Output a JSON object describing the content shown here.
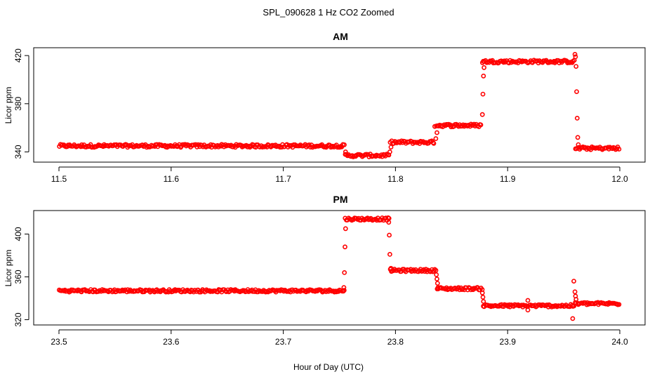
{
  "figure": {
    "title": "SPL_090628  1 Hz CO2 Zoomed",
    "xlabel": "Hour of Day (UTC)"
  },
  "colors": {
    "points": "#ff0000",
    "axes": "#000000"
  },
  "chart_data": [
    {
      "type": "scatter",
      "title": "AM",
      "xlabel": "Hour of Day (UTC)",
      "ylabel": "Licor ppm",
      "xlim": [
        11.5,
        12.0
      ],
      "ylim": [
        335,
        423
      ],
      "xticks": [
        11.5,
        11.6,
        11.7,
        11.8,
        11.9,
        12.0
      ],
      "xtick_labels": [
        "11.5",
        "11.6",
        "11.7",
        "11.8",
        "11.9",
        "12.0"
      ],
      "yticks": [
        340,
        380,
        420
      ],
      "ytick_labels": [
        "340",
        "380",
        "420"
      ],
      "steps": [
        {
          "x_start": 11.5,
          "x_end": 11.755,
          "y": 345
        },
        {
          "x_start": 11.755,
          "x_end": 11.795,
          "y": 337
        },
        {
          "x_start": 11.795,
          "x_end": 11.835,
          "y": 348
        },
        {
          "x_start": 11.835,
          "x_end": 11.877,
          "y": 362
        },
        {
          "x_start": 11.877,
          "x_end": 11.96,
          "y": 415
        },
        {
          "x_start": 11.96,
          "x_end": 12.0,
          "y": 343
        }
      ],
      "transition_points": [
        {
          "x": 11.7555,
          "y": 340
        },
        {
          "x": 11.756,
          "y": 338
        },
        {
          "x": 11.795,
          "y": 340
        },
        {
          "x": 11.796,
          "y": 344
        },
        {
          "x": 11.836,
          "y": 351
        },
        {
          "x": 11.837,
          "y": 356
        },
        {
          "x": 11.8775,
          "y": 371
        },
        {
          "x": 11.878,
          "y": 388
        },
        {
          "x": 11.8785,
          "y": 403
        },
        {
          "x": 11.879,
          "y": 410
        },
        {
          "x": 11.96,
          "y": 421
        },
        {
          "x": 11.9605,
          "y": 419
        },
        {
          "x": 11.961,
          "y": 411
        },
        {
          "x": 11.9615,
          "y": 390
        },
        {
          "x": 11.962,
          "y": 368
        },
        {
          "x": 11.9625,
          "y": 352
        },
        {
          "x": 11.963,
          "y": 346
        }
      ]
    },
    {
      "type": "scatter",
      "title": "PM",
      "xlabel": "Hour of Day (UTC)",
      "ylabel": "Licor ppm",
      "xlim": [
        23.5,
        24.0
      ],
      "ylim": [
        319,
        418
      ],
      "xticks": [
        23.5,
        23.6,
        23.7,
        23.8,
        23.9,
        24.0
      ],
      "xtick_labels": [
        "23.5",
        "23.6",
        "23.7",
        "23.8",
        "23.9",
        "24.0"
      ],
      "yticks": [
        320,
        360,
        400
      ],
      "ytick_labels": [
        "320",
        "360",
        "400"
      ],
      "steps": [
        {
          "x_start": 23.5,
          "x_end": 23.755,
          "y": 347
        },
        {
          "x_start": 23.755,
          "x_end": 23.795,
          "y": 414
        },
        {
          "x_start": 23.795,
          "x_end": 23.837,
          "y": 366
        },
        {
          "x_start": 23.837,
          "x_end": 23.878,
          "y": 349
        },
        {
          "x_start": 23.878,
          "x_end": 23.96,
          "y": 333
        },
        {
          "x_start": 23.96,
          "x_end": 24.0,
          "y": 335
        }
      ],
      "transition_points": [
        {
          "x": 23.754,
          "y": 350
        },
        {
          "x": 23.7545,
          "y": 364
        },
        {
          "x": 23.755,
          "y": 388
        },
        {
          "x": 23.7555,
          "y": 405
        },
        {
          "x": 23.794,
          "y": 411
        },
        {
          "x": 23.7945,
          "y": 399
        },
        {
          "x": 23.795,
          "y": 381
        },
        {
          "x": 23.796,
          "y": 368
        },
        {
          "x": 23.8365,
          "y": 362
        },
        {
          "x": 23.837,
          "y": 358
        },
        {
          "x": 23.8375,
          "y": 354
        },
        {
          "x": 23.838,
          "y": 350
        },
        {
          "x": 23.8775,
          "y": 345
        },
        {
          "x": 23.878,
          "y": 341
        },
        {
          "x": 23.8785,
          "y": 337
        },
        {
          "x": 23.918,
          "y": 329
        },
        {
          "x": 23.918,
          "y": 338
        },
        {
          "x": 23.958,
          "y": 321
        },
        {
          "x": 23.959,
          "y": 356
        },
        {
          "x": 23.96,
          "y": 346
        },
        {
          "x": 23.9605,
          "y": 342
        },
        {
          "x": 23.961,
          "y": 339
        }
      ]
    }
  ]
}
